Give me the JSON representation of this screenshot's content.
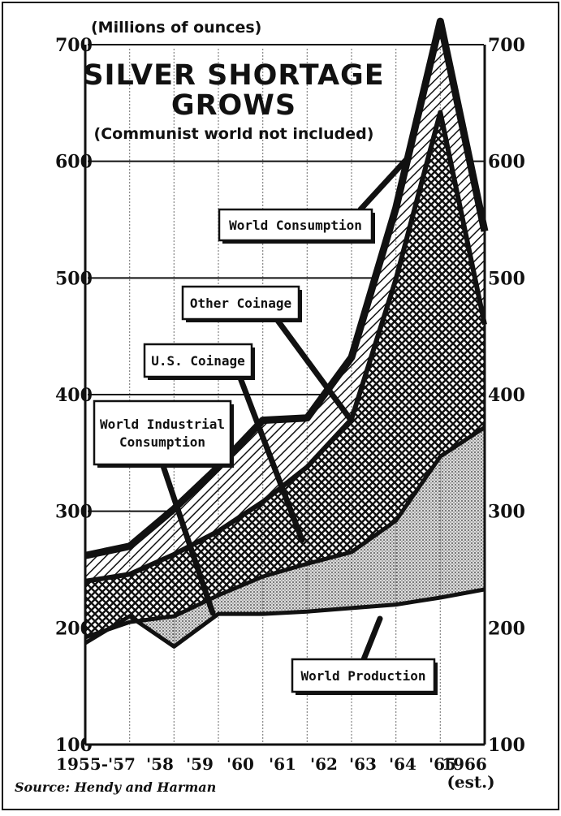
{
  "chart_data": {
    "type": "area",
    "title": "SILVER SHORTAGE",
    "title_line2": "GROWS",
    "subtitle": "(Communist world not included)",
    "ylabel": "(Millions of ounces)",
    "ylim": [
      100,
      700
    ],
    "yticks": [
      "100",
      "200",
      "300",
      "400",
      "500",
      "600",
      "700"
    ],
    "grid": true,
    "x": [
      "1955-'57",
      "'58",
      "'59",
      "'60",
      "'61",
      "'62",
      "'63",
      "'64",
      "'65",
      "1966"
    ],
    "x_sub": "(est.)",
    "series": [
      {
        "name": "World Production",
        "values": [
          187,
          210,
          184,
          212,
          212,
          214,
          217,
          220,
          226,
          233
        ],
        "pattern": "white"
      },
      {
        "name": "World Industrial Consumption",
        "values": [
          192,
          205,
          210,
          228,
          244,
          255,
          265,
          292,
          347,
          372
        ],
        "pattern": "dots"
      },
      {
        "name": "U.S. Coinage",
        "values": [
          240,
          246,
          263,
          283,
          308,
          338,
          379,
          499,
          642,
          460
        ],
        "pattern": "crosshatch"
      },
      {
        "name": "Other Coinage",
        "values": [
          262,
          270,
          302,
          338,
          378,
          380,
          432,
          560,
          720,
          540
        ],
        "pattern": "diagonal"
      },
      {
        "name": "World Consumption",
        "values": [
          262,
          270,
          302,
          338,
          378,
          380,
          432,
          560,
          720,
          540
        ],
        "pattern": "line"
      }
    ],
    "callouts": [
      {
        "label": "World Consumption",
        "series": "World Consumption"
      },
      {
        "label": "Other Coinage",
        "series": "Other Coinage"
      },
      {
        "label": "U.S. Coinage",
        "series": "U.S. Coinage"
      },
      {
        "label": "World Industrial Consumption",
        "lines": [
          "World Industrial",
          "Consumption"
        ],
        "series": "World Industrial Consumption"
      },
      {
        "label": "World Production",
        "series": "World Production"
      }
    ],
    "source": "Source: Hendy and Harman"
  }
}
